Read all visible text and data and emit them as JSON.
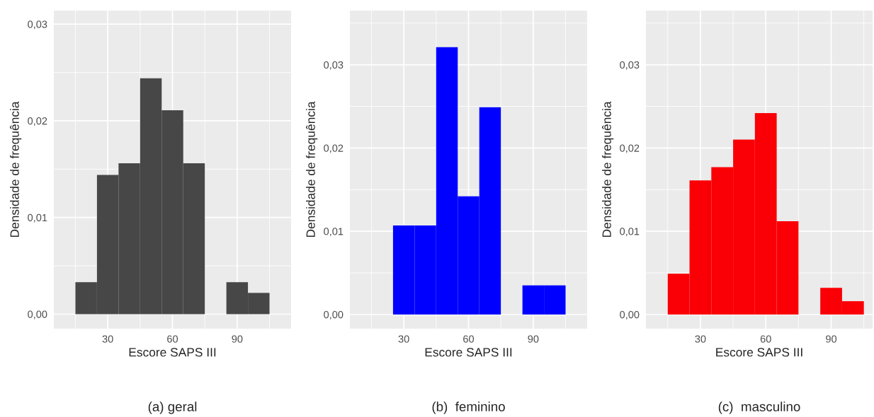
{
  "chart_data": [
    {
      "type": "histogram",
      "xlabel": "Escore SAPS III",
      "ylabel": "Densidade de frequência",
      "annotations": [
        "(a) geral"
      ],
      "color": "#474747",
      "bins": [
        15,
        25,
        35,
        45,
        55,
        65,
        75,
        85,
        95,
        105
      ],
      "values": [
        0.0033,
        0.0144,
        0.0156,
        0.0244,
        0.0211,
        0.0156,
        0,
        0.0033,
        0.0022
      ],
      "xlim": [
        5,
        115
      ],
      "xticks": [
        30,
        60,
        90
      ],
      "ylim": [
        -0.0015,
        0.0314
      ],
      "yticks": [
        {
          "value": 0,
          "label": "0,00"
        },
        {
          "value": 0.01,
          "label": "0,01"
        },
        {
          "value": 0.02,
          "label": "0,02"
        },
        {
          "value": 0.03,
          "label": "0,03"
        }
      ],
      "grid": true
    },
    {
      "type": "histogram",
      "xlabel": "Escore SAPS III",
      "ylabel": "Densidade de frequência",
      "annotations": [
        "(b)  feminino"
      ],
      "color": "#0000ff",
      "bins": [
        25,
        35,
        45,
        55,
        65,
        75,
        85,
        95,
        105
      ],
      "values": [
        0.0107,
        0.0107,
        0.0321,
        0.0142,
        0.0249,
        0,
        0.0035,
        0.0035
      ],
      "xlim": [
        5,
        115
      ],
      "xticks": [
        30,
        60,
        90
      ],
      "ylim": [
        -0.0017,
        0.0365
      ],
      "yticks": [
        {
          "value": 0,
          "label": "0,00"
        },
        {
          "value": 0.01,
          "label": "0,01"
        },
        {
          "value": 0.02,
          "label": "0,02"
        },
        {
          "value": 0.03,
          "label": "0,03"
        }
      ],
      "grid": true
    },
    {
      "type": "histogram",
      "xlabel": "Escore SAPS III",
      "ylabel": "Densidade de frequência",
      "annotations": [
        "(c)  masculino"
      ],
      "color": "#fa0006",
      "bins": [
        15,
        25,
        35,
        45,
        55,
        65,
        75,
        85,
        95,
        105
      ],
      "values": [
        0.0049,
        0.0161,
        0.0177,
        0.021,
        0.0242,
        0.0112,
        0,
        0.0032,
        0.0016
      ],
      "xlim": [
        5,
        109
      ],
      "xticks": [
        30,
        60,
        90
      ],
      "ylim": [
        -0.0017,
        0.0365
      ],
      "yticks": [
        {
          "value": 0,
          "label": "0,00"
        },
        {
          "value": 0.01,
          "label": "0,01"
        },
        {
          "value": 0.02,
          "label": "0,02"
        },
        {
          "value": 0.03,
          "label": "0,03"
        }
      ],
      "grid": true
    }
  ]
}
